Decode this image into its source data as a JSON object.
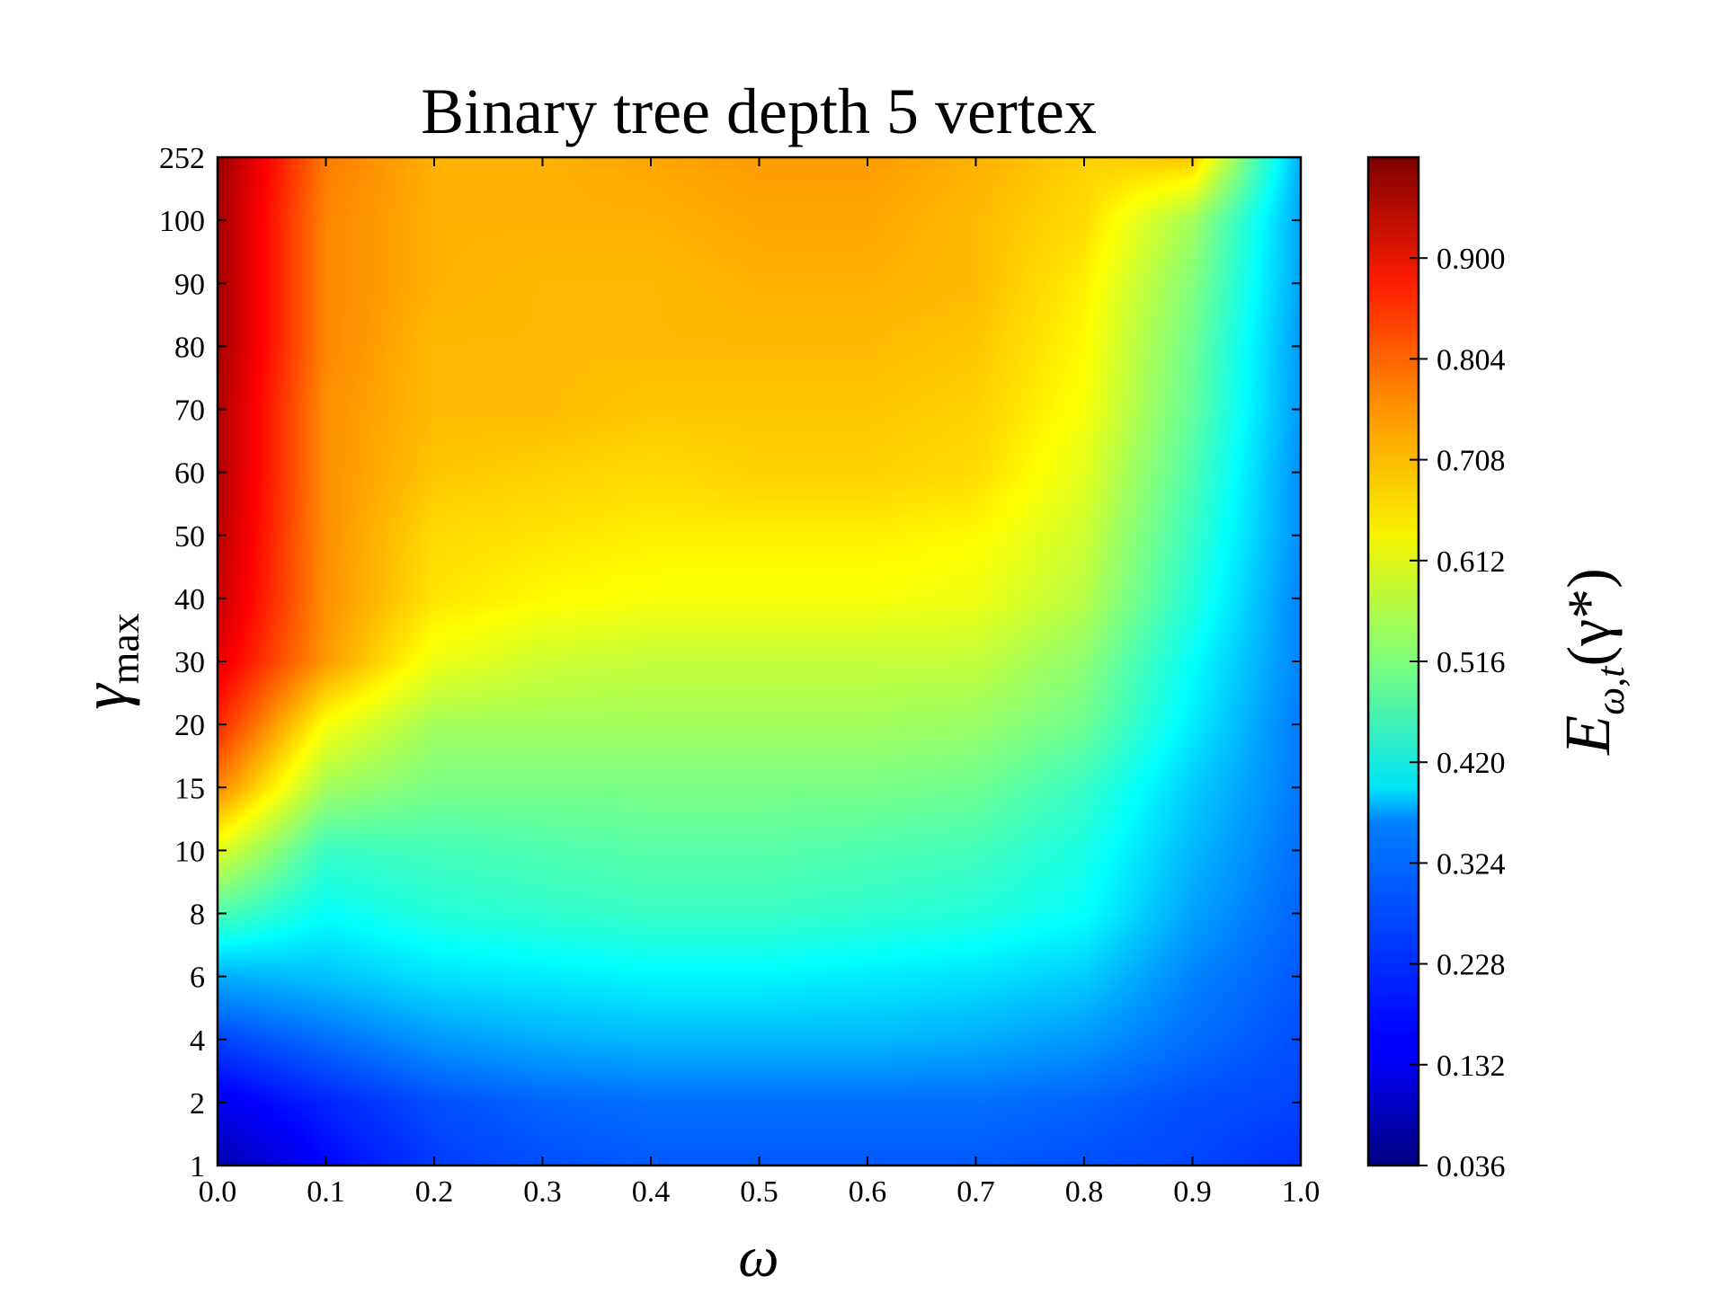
{
  "chart_data": {
    "type": "heatmap",
    "title": "Binary tree depth 5 vertex",
    "xlabel": "ω",
    "ylabel": {
      "main": "γ",
      "sub": "max"
    },
    "colorbar_label": {
      "main": "E",
      "sub": "ω,t",
      "arg": "(γ*)"
    },
    "colormap": "jet",
    "x_ticks": [
      "0.0",
      "0.1",
      "0.2",
      "0.3",
      "0.4",
      "0.5",
      "0.6",
      "0.7",
      "0.8",
      "0.9",
      "1.0"
    ],
    "y_ticks": [
      "1",
      "2",
      "4",
      "6",
      "8",
      "10",
      "15",
      "20",
      "30",
      "40",
      "50",
      "60",
      "70",
      "80",
      "90",
      "100",
      "252"
    ],
    "colorbar_ticks": [
      "0.036",
      "0.132",
      "0.228",
      "0.324",
      "0.420",
      "0.516",
      "0.612",
      "0.708",
      "0.804",
      "0.900"
    ],
    "value_range": [
      0.036,
      0.996
    ],
    "x": [
      0.0,
      0.1,
      0.2,
      0.3,
      0.4,
      0.5,
      0.6,
      0.7,
      0.8,
      0.9,
      1.0
    ],
    "y": [
      "1",
      "2",
      "4",
      "6",
      "8",
      "10",
      "15",
      "20",
      "30",
      "40",
      "50",
      "60",
      "70",
      "80",
      "90",
      "100",
      "252"
    ],
    "z": [
      [
        0.08,
        0.16,
        0.21,
        0.23,
        0.24,
        0.24,
        0.24,
        0.24,
        0.23,
        0.22,
        0.2
      ],
      [
        0.14,
        0.19,
        0.23,
        0.25,
        0.26,
        0.26,
        0.26,
        0.26,
        0.25,
        0.23,
        0.22
      ],
      [
        0.22,
        0.26,
        0.3,
        0.32,
        0.33,
        0.33,
        0.33,
        0.32,
        0.3,
        0.26,
        0.23
      ],
      [
        0.32,
        0.34,
        0.37,
        0.38,
        0.39,
        0.39,
        0.38,
        0.37,
        0.35,
        0.28,
        0.24
      ],
      [
        0.47,
        0.4,
        0.43,
        0.44,
        0.45,
        0.45,
        0.44,
        0.43,
        0.4,
        0.31,
        0.25
      ],
      [
        0.61,
        0.45,
        0.46,
        0.47,
        0.48,
        0.48,
        0.47,
        0.46,
        0.42,
        0.33,
        0.26
      ],
      [
        0.75,
        0.55,
        0.51,
        0.51,
        0.51,
        0.51,
        0.51,
        0.5,
        0.45,
        0.35,
        0.27
      ],
      [
        0.84,
        0.63,
        0.55,
        0.55,
        0.55,
        0.55,
        0.55,
        0.54,
        0.5,
        0.38,
        0.27
      ],
      [
        0.9,
        0.73,
        0.62,
        0.59,
        0.58,
        0.58,
        0.58,
        0.58,
        0.53,
        0.4,
        0.28
      ],
      [
        0.93,
        0.74,
        0.66,
        0.64,
        0.63,
        0.63,
        0.63,
        0.62,
        0.57,
        0.43,
        0.28
      ],
      [
        0.94,
        0.74,
        0.67,
        0.66,
        0.65,
        0.65,
        0.65,
        0.64,
        0.59,
        0.45,
        0.29
      ],
      [
        0.95,
        0.74,
        0.69,
        0.68,
        0.67,
        0.68,
        0.68,
        0.67,
        0.61,
        0.47,
        0.29
      ],
      [
        0.95,
        0.74,
        0.7,
        0.7,
        0.69,
        0.69,
        0.69,
        0.68,
        0.63,
        0.49,
        0.3
      ],
      [
        0.96,
        0.75,
        0.7,
        0.7,
        0.7,
        0.7,
        0.7,
        0.69,
        0.64,
        0.5,
        0.3
      ],
      [
        0.96,
        0.75,
        0.71,
        0.7,
        0.7,
        0.71,
        0.71,
        0.7,
        0.65,
        0.52,
        0.31
      ],
      [
        0.96,
        0.75,
        0.71,
        0.71,
        0.71,
        0.72,
        0.72,
        0.7,
        0.67,
        0.55,
        0.31
      ],
      [
        0.97,
        0.76,
        0.71,
        0.71,
        0.72,
        0.73,
        0.73,
        0.71,
        0.68,
        0.69,
        0.32
      ]
    ]
  }
}
